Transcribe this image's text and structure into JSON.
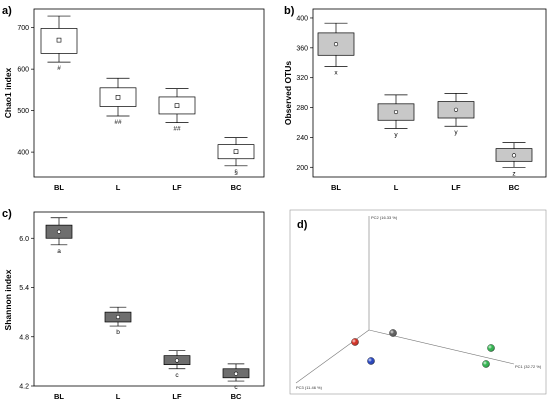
{
  "chart_data": [
    {
      "panel": "a)",
      "type": "box",
      "ylabel": "Chao1 index",
      "categories": [
        "BL",
        "L",
        "LF",
        "BC"
      ],
      "yticks": [
        400,
        500,
        600,
        700
      ],
      "ylim": [
        340,
        745
      ],
      "box_style": "white",
      "boxes": [
        {
          "whisker_low": 617,
          "q1": 638,
          "median": 670,
          "q3": 698,
          "whisker_high": 728,
          "mean": 670,
          "annotation": "#"
        },
        {
          "whisker_low": 487,
          "q1": 510,
          "median": 532,
          "q3": 555,
          "whisker_high": 578,
          "mean": 532,
          "annotation": "##"
        },
        {
          "whisker_low": 471,
          "q1": 492,
          "median": 512,
          "q3": 533,
          "whisker_high": 553,
          "mean": 512,
          "annotation": "##"
        },
        {
          "whisker_low": 367,
          "q1": 384,
          "median": 401,
          "q3": 418,
          "whisker_high": 435,
          "mean": 401,
          "annotation": "§"
        }
      ]
    },
    {
      "panel": "b)",
      "type": "box",
      "ylabel": "Observed OTUs",
      "categories": [
        "BL",
        "L",
        "LF",
        "BC"
      ],
      "yticks": [
        200,
        240,
        280,
        320,
        360,
        400
      ],
      "ylim": [
        187,
        412
      ],
      "box_style": "light-gray",
      "boxes": [
        {
          "whisker_low": 335,
          "q1": 350,
          "median": 365,
          "q3": 380,
          "whisker_high": 393,
          "mean": 365,
          "annotation": "x"
        },
        {
          "whisker_low": 252,
          "q1": 263,
          "median": 274,
          "q3": 285,
          "whisker_high": 297,
          "mean": 274,
          "annotation": "y"
        },
        {
          "whisker_low": 255,
          "q1": 266,
          "median": 277,
          "q3": 288,
          "whisker_high": 299,
          "mean": 277,
          "annotation": "y"
        },
        {
          "whisker_low": 200,
          "q1": 208,
          "median": 216,
          "q3": 225,
          "whisker_high": 233,
          "mean": 216,
          "annotation": "z"
        }
      ]
    },
    {
      "panel": "c)",
      "type": "box",
      "ylabel": "Shannon index",
      "categories": [
        "BL",
        "L",
        "LF",
        "BC"
      ],
      "yticks": [
        4.2,
        4.8,
        5.4,
        6.0
      ],
      "yticks_labels": [
        "4.2",
        "4.8",
        "5.4",
        "6.0"
      ],
      "ylim": [
        4.2,
        6.32
      ],
      "box_style": "dark-gray",
      "boxes": [
        {
          "whisker_low": 5.92,
          "q1": 6.0,
          "median": 6.08,
          "q3": 6.16,
          "whisker_high": 6.25,
          "mean": 6.08,
          "annotation": "a"
        },
        {
          "whisker_low": 4.93,
          "q1": 4.98,
          "median": 5.04,
          "q3": 5.1,
          "whisker_high": 5.16,
          "mean": 5.04,
          "annotation": "b"
        },
        {
          "whisker_low": 4.41,
          "q1": 4.46,
          "median": 4.51,
          "q3": 4.57,
          "whisker_high": 4.63,
          "mean": 4.51,
          "annotation": "c"
        },
        {
          "whisker_low": 4.26,
          "q1": 4.3,
          "median": 4.35,
          "q3": 4.41,
          "whisker_high": 4.47,
          "mean": 4.35,
          "annotation": "c"
        }
      ]
    },
    {
      "panel": "d)",
      "type": "scatter3d",
      "axis_labels": {
        "pc1": "PC1 (32.72 %)",
        "pc2": "PC2 (16.33 %)",
        "pc3": "PC3 (11.46 %)"
      },
      "points": [
        {
          "color": "#d42a1e"
        },
        {
          "color": "#5a5a5a"
        },
        {
          "color": "#1f3fbf"
        },
        {
          "color": "#2bb34a"
        },
        {
          "color": "#2bb34a"
        }
      ]
    }
  ],
  "colors": {
    "box_white": "#ffffff",
    "box_light": "#c8c8c8",
    "box_dark": "#6e6e6e",
    "frame": "#000000"
  }
}
